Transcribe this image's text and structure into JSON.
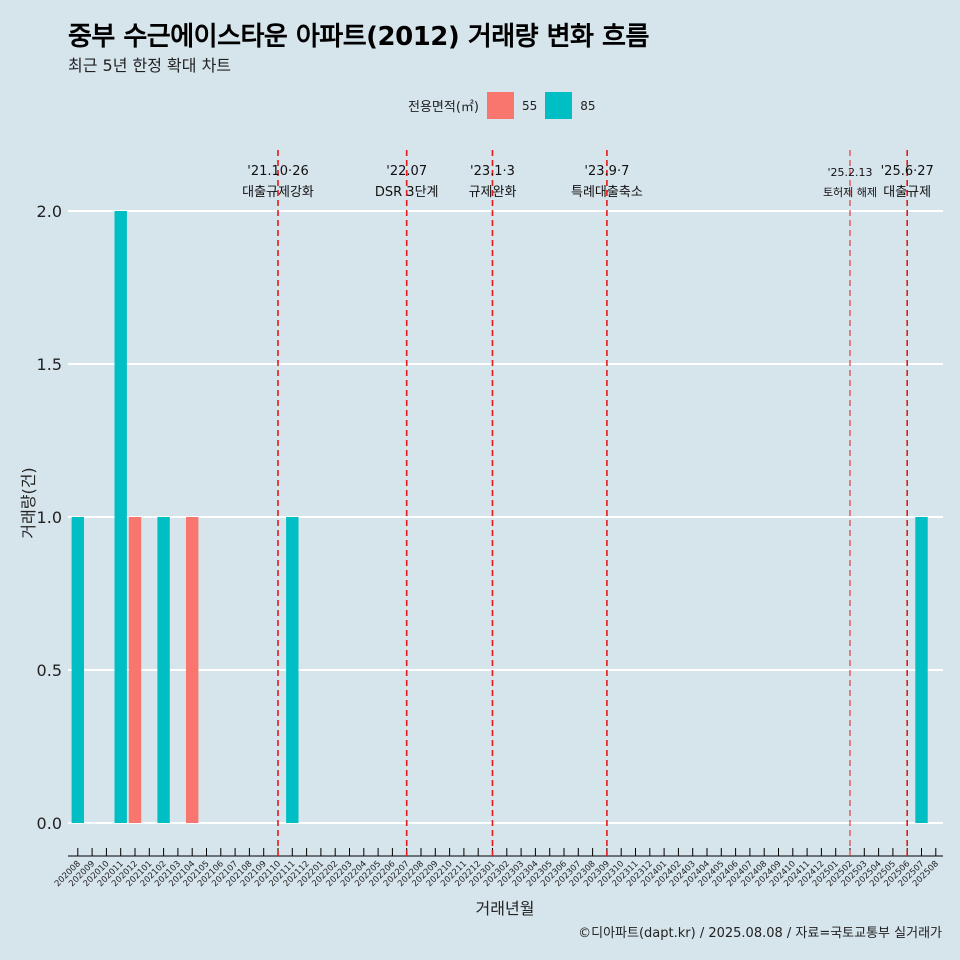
{
  "title": "중부 수근에이스타운 아파트(2012) 거래량 변화 흐름",
  "subtitle": "최근 5년 한정 확대 차트",
  "caption": "©디아파트(dapt.kr) / 2025.08.08 / 자료=국토교통부 실거래가",
  "colors": {
    "background": "#d6e4eb",
    "s55": "#f8766d",
    "s85": "#00bfc4",
    "event_line": "#e31a1c",
    "grid": "#ffffff"
  },
  "legend": {
    "title": "전용면적(㎡)",
    "items": [
      {
        "label": "55",
        "color": "#f8766d"
      },
      {
        "label": "85",
        "color": "#00bfc4"
      }
    ]
  },
  "chart_data": {
    "type": "bar",
    "title": "중부 수근에이스타운 아파트(2012) 거래량 변화 흐름",
    "subtitle": "최근 5년 한정 확대 차트",
    "xlabel": "거래년월",
    "ylabel": "거래량(건)",
    "ylim": [
      0,
      2
    ],
    "yticks": [
      "0.0",
      "0.5",
      "1.0",
      "1.5",
      "2.0"
    ],
    "grid": true,
    "legend_position": "top",
    "categories": [
      "202008",
      "202009",
      "202010",
      "202011",
      "202012",
      "202101",
      "202102",
      "202103",
      "202104",
      "202105",
      "202106",
      "202107",
      "202108",
      "202109",
      "202110",
      "202111",
      "202112",
      "202201",
      "202202",
      "202203",
      "202204",
      "202205",
      "202206",
      "202207",
      "202208",
      "202209",
      "202210",
      "202211",
      "202212",
      "202301",
      "202302",
      "202303",
      "202304",
      "202305",
      "202306",
      "202307",
      "202308",
      "202309",
      "202310",
      "202311",
      "202312",
      "202401",
      "202402",
      "202403",
      "202404",
      "202405",
      "202406",
      "202407",
      "202408",
      "202409",
      "202410",
      "202411",
      "202412",
      "202501",
      "202502",
      "202503",
      "202504",
      "202505",
      "202506",
      "202507",
      "202508"
    ],
    "series": [
      {
        "name": "55",
        "color": "#f8766d",
        "points": [
          {
            "x": "202012",
            "y": 1
          },
          {
            "x": "202104",
            "y": 1
          }
        ]
      },
      {
        "name": "85",
        "color": "#00bfc4",
        "points": [
          {
            "x": "202008",
            "y": 1
          },
          {
            "x": "202011",
            "y": 2
          },
          {
            "x": "202102",
            "y": 1
          },
          {
            "x": "202111",
            "y": 1
          },
          {
            "x": "202507",
            "y": 1
          }
        ]
      }
    ],
    "events": [
      {
        "x": "202110",
        "date": "'21.10·26",
        "label": "대출규제강화",
        "small": false
      },
      {
        "x": "202207",
        "date": "'22.07",
        "label": "DSR 3단계",
        "small": false
      },
      {
        "x": "202301",
        "date": "'23.1·3",
        "label": "규제완화",
        "small": false
      },
      {
        "x": "202309",
        "date": "'23.9·7",
        "label": "특례대출축소",
        "small": false
      },
      {
        "x": "202502",
        "date": "'25.2.13",
        "label": "토허제 해제",
        "small": true
      },
      {
        "x": "202506",
        "date": "'25.6·27",
        "label": "대출규제",
        "small": false
      }
    ]
  }
}
